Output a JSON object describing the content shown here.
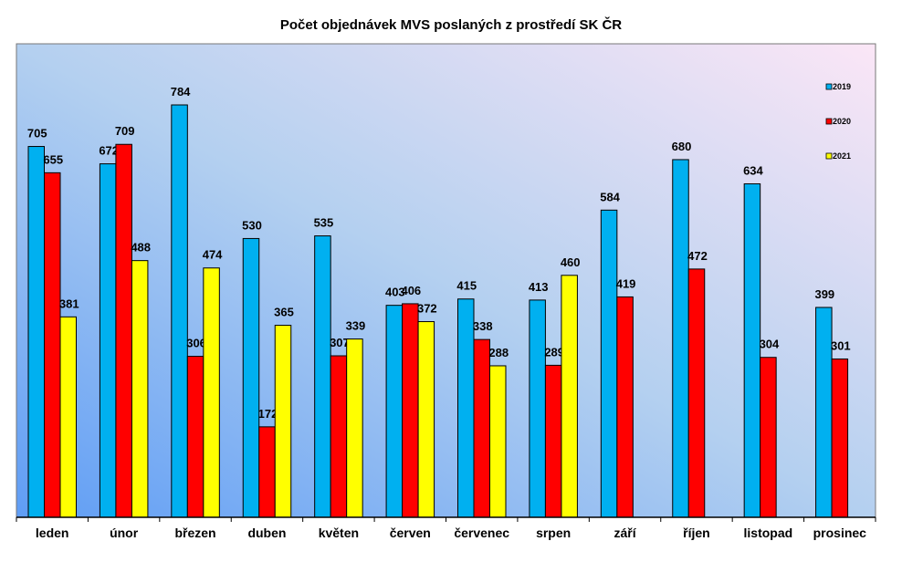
{
  "chart_data": {
    "type": "bar",
    "title": "Počet objednávek MVS poslaných z prostředí SK ČR",
    "xlabel": "",
    "ylabel": "",
    "ylim": [
      0,
      905
    ],
    "grid": false,
    "legend_position": "top-right",
    "categories": [
      "leden",
      "únor",
      "březen",
      "duben",
      "květen",
      "červen",
      "červenec",
      "srpen",
      "září",
      "říjen",
      "listopad",
      "prosinec"
    ],
    "series": [
      {
        "name": "2019",
        "color": "#00b0f0",
        "values": [
          705,
          672,
          784,
          530,
          535,
          403,
          415,
          413,
          584,
          680,
          634,
          399
        ]
      },
      {
        "name": "2020",
        "color": "#ff0000",
        "values": [
          655,
          709,
          306,
          172,
          307,
          406,
          338,
          289,
          419,
          472,
          304,
          301
        ]
      },
      {
        "name": "2021",
        "color": "#ffff00",
        "values": [
          381,
          488,
          474,
          365,
          339,
          372,
          288,
          460,
          null,
          null,
          null,
          null
        ]
      }
    ]
  }
}
